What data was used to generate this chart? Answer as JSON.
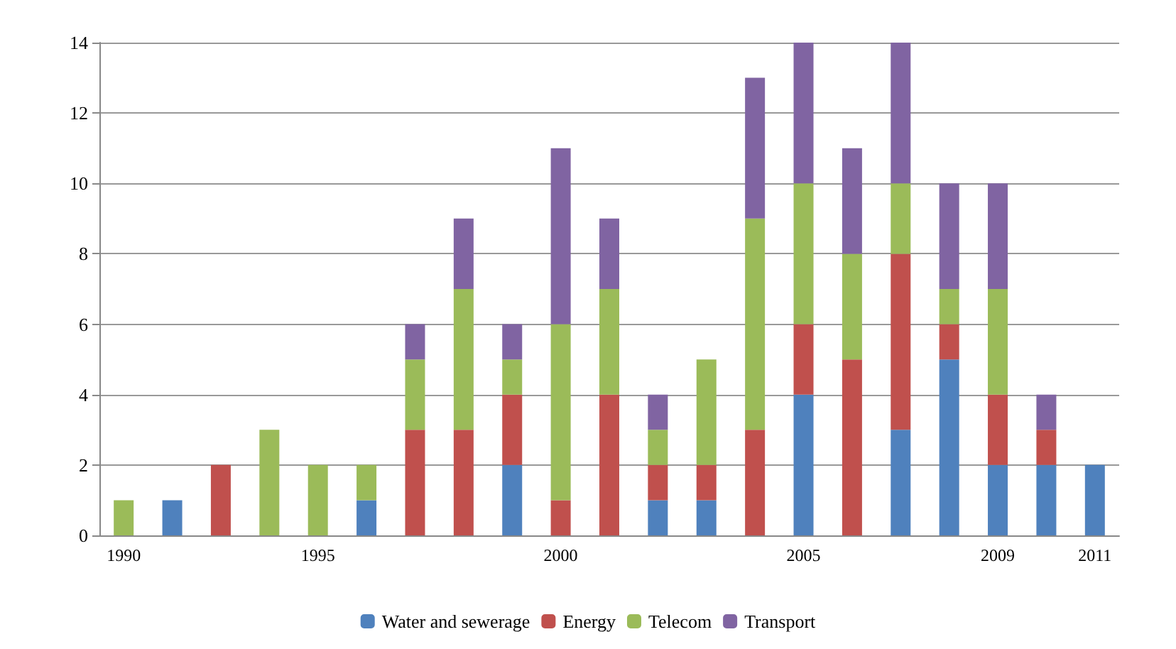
{
  "chart_data": {
    "type": "bar",
    "stacked": true,
    "categories": [
      "1990",
      null,
      null,
      null,
      "1995",
      null,
      null,
      null,
      null,
      "2000",
      null,
      null,
      null,
      null,
      "2005",
      null,
      null,
      null,
      "2009",
      null,
      "2011"
    ],
    "series": [
      {
        "name": "Water and sewerage",
        "color": "#4f81bd",
        "values": [
          0,
          1,
          0,
          0,
          0,
          1,
          0,
          0,
          2,
          0,
          0,
          1,
          1,
          0,
          4,
          0,
          3,
          5,
          2,
          2,
          2
        ]
      },
      {
        "name": "Energy",
        "color": "#c0504d",
        "values": [
          0,
          0,
          2,
          0,
          0,
          0,
          3,
          3,
          2,
          1,
          4,
          1,
          1,
          3,
          2,
          5,
          5,
          1,
          2,
          1,
          0
        ]
      },
      {
        "name": "Telecom",
        "color": "#9bbb59",
        "values": [
          1,
          0,
          0,
          3,
          2,
          1,
          2,
          4,
          1,
          5,
          3,
          1,
          3,
          6,
          4,
          3,
          2,
          1,
          3,
          0,
          0
        ]
      },
      {
        "name": "Transport",
        "color": "#8064a2",
        "values": [
          0,
          0,
          0,
          0,
          0,
          0,
          1,
          2,
          1,
          5,
          2,
          1,
          0,
          4,
          4,
          3,
          4,
          3,
          3,
          1,
          0
        ]
      }
    ],
    "ylim": [
      0,
      14
    ],
    "yticks": [
      0,
      2,
      4,
      6,
      8,
      10,
      12,
      14
    ],
    "grid": "y",
    "legend": "bottom"
  }
}
